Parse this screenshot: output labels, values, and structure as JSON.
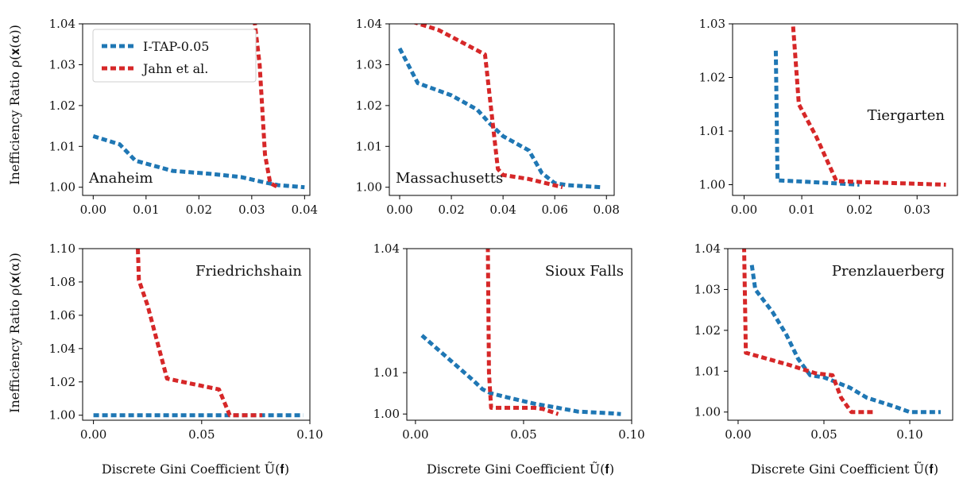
{
  "colors": {
    "itap": "#1f77b4",
    "jahn": "#d62728"
  },
  "legend": [
    {
      "label": "I-TAP-0.05",
      "color": "#1f77b4"
    },
    {
      "label": "Jahn et al.",
      "color": "#d62728"
    }
  ],
  "labels": {
    "ylabel_top": "Inefficiency Ratio ρ(𝐱(α))",
    "ylabel_bottom": "Inefficiency Ratio ρ(𝐱(α))",
    "xlabel": "Discrete Gini Coefficient Ũ(𝐟)"
  },
  "chart_data": [
    {
      "type": "line",
      "name": "Anaheim",
      "name_pos": "bottom-left",
      "xlim": [
        -0.002,
        0.041
      ],
      "ylim": [
        0.998,
        1.04
      ],
      "xticks": [
        0.0,
        0.01,
        0.02,
        0.03,
        0.04
      ],
      "xtick_labels": [
        "0.00",
        "0.01",
        "0.02",
        "0.03",
        "0.04"
      ],
      "yticks": [
        1.0,
        1.01,
        1.02,
        1.03,
        1.04
      ],
      "ytick_labels": [
        "1.00",
        "1.01",
        "1.02",
        "1.03",
        "1.04"
      ],
      "series": [
        {
          "name": "I-TAP-0.05",
          "color": "#1f77b4",
          "x": [
            0.0,
            0.005,
            0.008,
            0.015,
            0.022,
            0.028,
            0.032,
            0.035,
            0.04
          ],
          "y": [
            1.0125,
            1.0105,
            1.0065,
            1.004,
            1.0033,
            1.0025,
            1.0013,
            1.0005,
            1.0
          ]
        },
        {
          "name": "Jahn et al.",
          "color": "#d62728",
          "x": [
            0.0305,
            0.0315,
            0.0325,
            0.0335,
            0.035
          ],
          "y": [
            1.041,
            1.03,
            1.008,
            1.001,
            1.0
          ]
        }
      ]
    },
    {
      "type": "line",
      "name": "Massachusetts",
      "name_pos": "bottom-left",
      "xlim": [
        -0.004,
        0.083
      ],
      "ylim": [
        0.998,
        1.04
      ],
      "xticks": [
        0.0,
        0.02,
        0.04,
        0.06,
        0.08
      ],
      "xtick_labels": [
        "0.00",
        "0.02",
        "0.04",
        "0.06",
        "0.08"
      ],
      "yticks": [
        1.0,
        1.01,
        1.02,
        1.03,
        1.04
      ],
      "ytick_labels": [
        "1.00",
        "1.01",
        "1.02",
        "1.03",
        "1.04"
      ],
      "series": [
        {
          "name": "I-TAP-0.05",
          "color": "#1f77b4",
          "x": [
            0.0,
            0.007,
            0.02,
            0.03,
            0.035,
            0.04,
            0.05,
            0.055,
            0.06,
            0.065,
            0.078
          ],
          "y": [
            1.034,
            1.0255,
            1.0225,
            1.019,
            1.0155,
            1.0125,
            1.009,
            1.0035,
            1.001,
            1.0005,
            1.0
          ]
        },
        {
          "name": "Jahn et al.",
          "color": "#d62728",
          "x": [
            0.005,
            0.015,
            0.033,
            0.038,
            0.04,
            0.05,
            0.063
          ],
          "y": [
            1.0405,
            1.0385,
            1.0325,
            1.0045,
            1.003,
            1.002,
            1.0
          ]
        }
      ]
    },
    {
      "type": "line",
      "name": "Tiergarten",
      "name_pos": "middle-right",
      "xlim": [
        -0.002,
        0.037
      ],
      "ylim": [
        0.998,
        1.03
      ],
      "xticks": [
        0.0,
        0.01,
        0.02,
        0.03
      ],
      "xtick_labels": [
        "0.00",
        "0.01",
        "0.02",
        "0.03"
      ],
      "yticks": [
        1.0,
        1.01,
        1.02,
        1.03
      ],
      "ytick_labels": [
        "1.00",
        "1.01",
        "1.02",
        "1.03"
      ],
      "series": [
        {
          "name": "I-TAP-0.05",
          "color": "#1f77b4",
          "x": [
            0.0055,
            0.0058,
            0.01,
            0.02
          ],
          "y": [
            1.025,
            1.0008,
            1.0006,
            1.0
          ]
        },
        {
          "name": "Jahn et al.",
          "color": "#d62728",
          "x": [
            0.0085,
            0.0095,
            0.0125,
            0.016,
            0.02,
            0.035
          ],
          "y": [
            1.0295,
            1.015,
            1.009,
            1.0007,
            1.0005,
            1.0
          ]
        }
      ]
    },
    {
      "type": "line",
      "name": "Friedrichshain",
      "name_pos": "top-right",
      "xlim": [
        -0.005,
        0.1
      ],
      "ylim": [
        0.997,
        1.1
      ],
      "xticks": [
        0.0,
        0.05,
        0.1
      ],
      "xtick_labels": [
        "0.00",
        "0.05",
        "0.10"
      ],
      "yticks": [
        1.0,
        1.02,
        1.04,
        1.06,
        1.08,
        1.1
      ],
      "ytick_labels": [
        "1.00",
        "1.02",
        "1.04",
        "1.06",
        "1.08",
        "1.10"
      ],
      "series": [
        {
          "name": "I-TAP-0.05",
          "color": "#1f77b4",
          "x": [
            0.0,
            0.097
          ],
          "y": [
            1.0,
            1.0
          ]
        },
        {
          "name": "Jahn et al.",
          "color": "#d62728",
          "x": [
            0.0205,
            0.021,
            0.025,
            0.034,
            0.045,
            0.058,
            0.063,
            0.078
          ],
          "y": [
            1.1,
            1.081,
            1.066,
            1.022,
            1.019,
            1.0155,
            1.0,
            1.0
          ]
        }
      ]
    },
    {
      "type": "line",
      "name": "Sioux Falls",
      "name_pos": "top-right",
      "xlim": [
        -0.004,
        0.1
      ],
      "ylim": [
        0.9985,
        1.04
      ],
      "xticks": [
        0.0,
        0.05,
        0.1
      ],
      "xtick_labels": [
        "0.00",
        "0.05",
        "0.10"
      ],
      "yticks": [
        1.0,
        1.01,
        1.04
      ],
      "ytick_labels": [
        "1.00",
        "1.01",
        "1.04"
      ],
      "series": [
        {
          "name": "I-TAP-0.05",
          "color": "#1f77b4",
          "x": [
            0.003,
            0.015,
            0.027,
            0.031,
            0.035,
            0.045,
            0.055,
            0.065,
            0.075,
            0.09,
            0.095
          ],
          "y": [
            1.019,
            1.0135,
            1.008,
            1.006,
            1.005,
            1.0037,
            1.0025,
            1.0016,
            1.0006,
            1.0002,
            1.0
          ]
        },
        {
          "name": "Jahn et al.",
          "color": "#d62728",
          "x": [
            0.0335,
            0.034,
            0.035,
            0.055,
            0.059,
            0.066
          ],
          "y": [
            1.0405,
            1.01,
            1.0015,
            1.0015,
            1.0012,
            1.0
          ]
        }
      ]
    },
    {
      "type": "line",
      "name": "Prenzlauerberg",
      "name_pos": "top-right",
      "xlim": [
        -0.006,
        0.125
      ],
      "ylim": [
        0.998,
        1.04
      ],
      "xticks": [
        0.0,
        0.05,
        0.1
      ],
      "xtick_labels": [
        "0.00",
        "0.05",
        "0.10"
      ],
      "yticks": [
        1.0,
        1.01,
        1.02,
        1.03,
        1.04
      ],
      "ytick_labels": [
        "1.00",
        "1.01",
        "1.02",
        "1.03",
        "1.04"
      ],
      "series": [
        {
          "name": "I-TAP-0.05",
          "color": "#1f77b4",
          "x": [
            0.008,
            0.01,
            0.02,
            0.028,
            0.035,
            0.042,
            0.05,
            0.056,
            0.065,
            0.075,
            0.09,
            0.1,
            0.118
          ],
          "y": [
            1.036,
            1.03,
            1.0245,
            1.019,
            1.013,
            1.009,
            1.0085,
            1.0075,
            1.006,
            1.0035,
            1.0015,
            1.0,
            1.0
          ]
        },
        {
          "name": "Jahn et al.",
          "color": "#d62728",
          "x": [
            0.0035,
            0.0045,
            0.03,
            0.045,
            0.055,
            0.06,
            0.066,
            0.08
          ],
          "y": [
            1.0405,
            1.0145,
            1.0115,
            1.0095,
            1.009,
            1.0035,
            1.0,
            1.0
          ]
        }
      ]
    }
  ]
}
